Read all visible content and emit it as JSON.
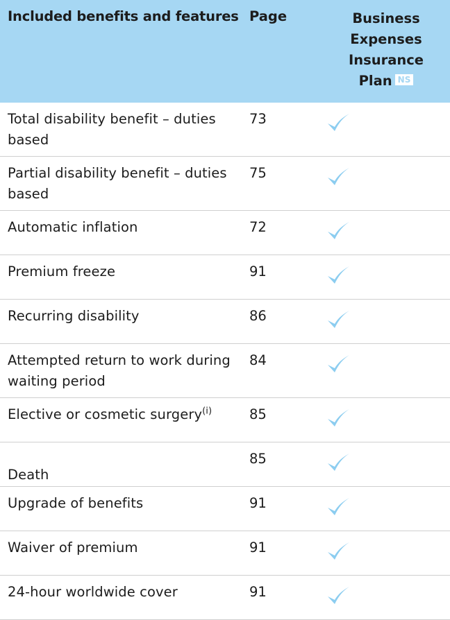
{
  "header": {
    "features_label": "Included benefits and features",
    "page_label": "Page",
    "plan_line1": "Business",
    "plan_line2": "Expenses",
    "plan_line3": "Insurance",
    "plan_line4": "Plan",
    "badge": "NS"
  },
  "rows": [
    {
      "name": "Total disability benefit – duties based",
      "page": "73"
    },
    {
      "name": "Partial disability benefit – duties based",
      "page": "75"
    },
    {
      "name": "Automatic inflation",
      "page": "72"
    },
    {
      "name": "Premium freeze",
      "page": "91"
    },
    {
      "name": "Recurring disability",
      "page": "86"
    },
    {
      "name": "Attempted return to work during waiting period",
      "page": "84"
    },
    {
      "name": "Elective or cosmetic surgery",
      "sup": "(i)",
      "page": "85"
    },
    {
      "name": "Death",
      "page": "85"
    },
    {
      "name": "Upgrade of benefits",
      "page": "91"
    },
    {
      "name": "Waiver of premium",
      "page": "91"
    },
    {
      "name": "24-hour worldwide cover",
      "page": "91"
    }
  ],
  "colors": {
    "header_bg": "#a6d7f3",
    "check": "#8ccdf0"
  },
  "icons": {
    "included": "checkmark-icon"
  }
}
